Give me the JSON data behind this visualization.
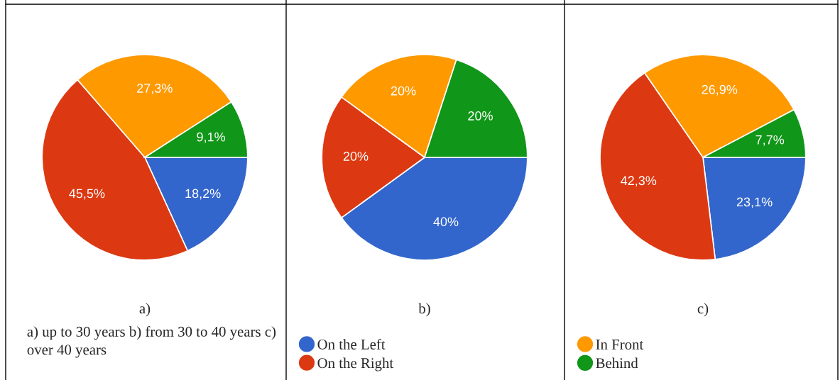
{
  "chart_data": [
    {
      "type": "pie",
      "title": "a)",
      "categories": [
        null,
        null,
        null,
        null
      ],
      "values": [
        18.2,
        45.5,
        27.3,
        9.1
      ],
      "colors": [
        "#3366cc",
        "#dc3912",
        "#ff9900",
        "#109618"
      ],
      "value_labels": [
        "18,2%",
        "45,5%",
        "27,3%",
        "9,1%"
      ],
      "annotations": [
        "a) up to 30 years b) from 30 to 40 years c) over 40 years"
      ]
    },
    {
      "type": "pie",
      "title": "b)",
      "categories": [
        "On the Left",
        "On the Right",
        null,
        null
      ],
      "values": [
        40,
        20,
        20,
        20
      ],
      "colors": [
        "#3366cc",
        "#dc3912",
        "#ff9900",
        "#109618"
      ],
      "value_labels": [
        "40%",
        "20%",
        "20%",
        "20%"
      ],
      "legend": "bottom"
    },
    {
      "type": "pie",
      "title": "c)",
      "categories": [
        null,
        null,
        "In Front",
        "Behind"
      ],
      "values": [
        23.1,
        42.3,
        26.9,
        7.7
      ],
      "colors": [
        "#3366cc",
        "#dc3912",
        "#ff9900",
        "#109618"
      ],
      "value_labels": [
        "23,1%",
        "42,3%",
        "26,9%",
        "7,7%"
      ],
      "legend": "bottom"
    }
  ]
}
